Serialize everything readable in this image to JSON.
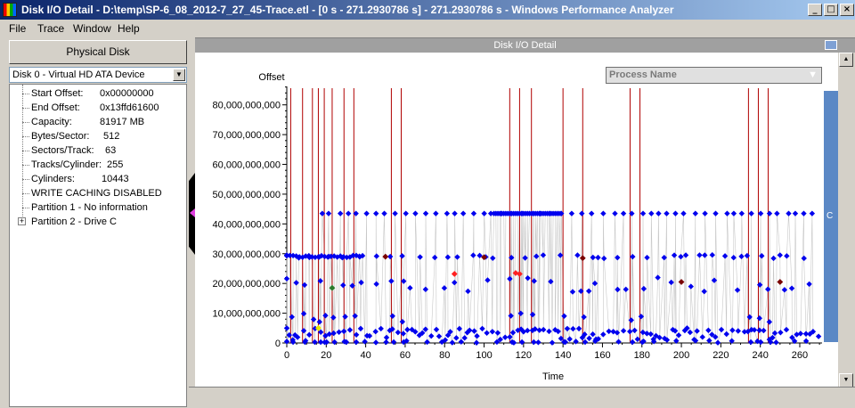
{
  "window": {
    "title": "Disk I/O Detail - D:\\temp\\SP-6_08_2012-7_27_45-Trace.etl - [0 s - 271.2930786 s] - 271.2930786 s - Windows Performance Analyzer",
    "minimize_glyph": "_",
    "maximize_glyph": "□",
    "close_glyph": "×"
  },
  "menu": [
    "File",
    "Trace",
    "Window",
    "Help"
  ],
  "left_panel": {
    "physical_disk_label": "Physical Disk",
    "disk_select": "Disk 0 - Virtual HD ATA Device",
    "props": [
      {
        "label": "Start Offset:",
        "value": "0x00000000"
      },
      {
        "label": "End Offset:",
        "value": "0x13ffd61600"
      },
      {
        "label": "Capacity:",
        "value": "81917 MB"
      },
      {
        "label": "Bytes/Sector:",
        "value": "512"
      },
      {
        "label": "Sectors/Track:",
        "value": "63"
      },
      {
        "label": "Tracks/Cylinder:",
        "value": "255"
      },
      {
        "label": "Cylinders:",
        "value": "10443"
      },
      {
        "label": "WRITE CACHING DISABLED",
        "value": ""
      },
      {
        "label": "Partition 1 - No information",
        "value": ""
      },
      {
        "label": "Partition 2 - Drive C",
        "value": ""
      }
    ],
    "expander_glyph": "+"
  },
  "chart_panel": {
    "header": "Disk I/O Detail",
    "group_by": "Process Name",
    "group_by_arrow": "▼",
    "strip_letter": "C",
    "scroll_up": "▲",
    "scroll_down": "▼"
  },
  "chart_data": {
    "type": "scatter",
    "ylabel": "Offset",
    "xlabel": "Time",
    "xlim": [
      0,
      271.2930786
    ],
    "ylim": [
      0,
      85000000000
    ],
    "x_ticks": [
      0,
      20,
      40,
      60,
      80,
      100,
      120,
      140,
      160,
      180,
      200,
      220,
      240,
      260
    ],
    "y_ticks": [
      0,
      10000000000,
      20000000000,
      30000000000,
      40000000000,
      50000000000,
      60000000000,
      70000000000,
      80000000000
    ],
    "y_tick_labels": [
      "0",
      "10,000,000,000",
      "20,000,000,000",
      "30,000,000,000",
      "40,000,000,000",
      "50,000,000,000",
      "60,000,000,000",
      "70,000,000,000",
      "80,000,000,000"
    ],
    "flush_markers_x": [
      2,
      8,
      13,
      16,
      19,
      23,
      29,
      34,
      53,
      58,
      113,
      118,
      124,
      140,
      150,
      174,
      179,
      234,
      239,
      244
    ],
    "colors": {
      "io": "#0000ee",
      "flush": "#b00000",
      "trail": "#c8c8c8",
      "red": "#ff2020",
      "dark_red": "#7a0000",
      "green": "#2a7a2a",
      "yellow": "#e8e800"
    },
    "bands": {
      "high": 43500000000,
      "mid": 29000000000,
      "low": 3500000000
    },
    "special_points": [
      {
        "x": 85,
        "y": 23200000000,
        "color": "red"
      },
      {
        "x": 116,
        "y": 23500000000,
        "color": "red"
      },
      {
        "x": 118,
        "y": 23200000000,
        "color": "red"
      },
      {
        "x": 50,
        "y": 29000000000,
        "color": "dark_red"
      },
      {
        "x": 100,
        "y": 28800000000,
        "color": "dark_red"
      },
      {
        "x": 150,
        "y": 28500000000,
        "color": "dark_red"
      },
      {
        "x": 200,
        "y": 20500000000,
        "color": "dark_red"
      },
      {
        "x": 250,
        "y": 20500000000,
        "color": "dark_red"
      },
      {
        "x": 23,
        "y": 18500000000,
        "color": "green"
      },
      {
        "x": 16,
        "y": 5000000000,
        "color": "yellow"
      }
    ]
  }
}
